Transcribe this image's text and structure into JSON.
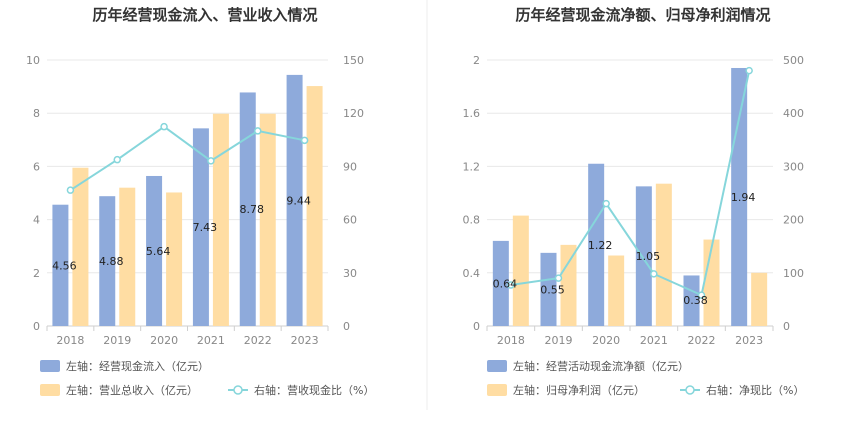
{
  "chart_data": [
    {
      "type": "bar",
      "title": "历年经营现金流入、营业收入情况",
      "categories": [
        "2018",
        "2019",
        "2020",
        "2021",
        "2022",
        "2023"
      ],
      "series": [
        {
          "name": "左轴：经营现金流入（亿元）",
          "axis": "left",
          "kind": "bar",
          "color": "#8eaadb",
          "values": [
            4.56,
            4.88,
            5.64,
            7.43,
            8.78,
            9.44
          ],
          "labels": [
            "4.56",
            "4.88",
            "5.64",
            "7.43",
            "8.78",
            "9.44"
          ]
        },
        {
          "name": "左轴：营业总收入（亿元）",
          "axis": "left",
          "kind": "bar",
          "color": "#ffdda3",
          "values": [
            5.95,
            5.2,
            5.02,
            7.98,
            7.98,
            9.02
          ]
        },
        {
          "name": "右轴：营收现金比（%）",
          "axis": "right",
          "kind": "line",
          "color": "#86d6db",
          "values": [
            76.6,
            93.8,
            112.4,
            93.1,
            110.0,
            104.7
          ]
        }
      ],
      "left_axis": {
        "min": 0,
        "max": 10,
        "ticks": [
          "0",
          "2",
          "4",
          "6",
          "8",
          "10"
        ]
      },
      "right_axis": {
        "min": 0,
        "max": 150,
        "ticks": [
          "0",
          "30",
          "60",
          "90",
          "120",
          "150"
        ]
      },
      "grid": true,
      "legend": "bottom"
    },
    {
      "type": "bar",
      "title": "历年经营现金流净额、归母净利润情况",
      "categories": [
        "2018",
        "2019",
        "2020",
        "2021",
        "2022",
        "2023"
      ],
      "series": [
        {
          "name": "左轴：经营活动现金流净额（亿元）",
          "axis": "left",
          "kind": "bar",
          "color": "#8eaadb",
          "values": [
            0.64,
            0.55,
            1.22,
            1.05,
            0.38,
            1.94
          ],
          "labels": [
            "0.64",
            "0.55",
            "1.22",
            "1.05",
            "0.38",
            "1.94"
          ]
        },
        {
          "name": "左轴：归母净利润（亿元）",
          "axis": "left",
          "kind": "bar",
          "color": "#ffdda3",
          "values": [
            0.83,
            0.61,
            0.53,
            1.07,
            0.65,
            0.4
          ]
        },
        {
          "name": "右轴：净现比（%）",
          "axis": "right",
          "kind": "line",
          "color": "#86d6db",
          "values": [
            77,
            90,
            230,
            98,
            58,
            480
          ]
        }
      ],
      "left_axis": {
        "min": 0,
        "max": 2,
        "ticks": [
          "0",
          "0.4",
          "0.8",
          "1.2",
          "1.6",
          "2"
        ]
      },
      "right_axis": {
        "min": 0,
        "max": 500,
        "ticks": [
          "0",
          "100",
          "200",
          "300",
          "400",
          "500"
        ]
      },
      "grid": true,
      "legend": "bottom"
    }
  ]
}
